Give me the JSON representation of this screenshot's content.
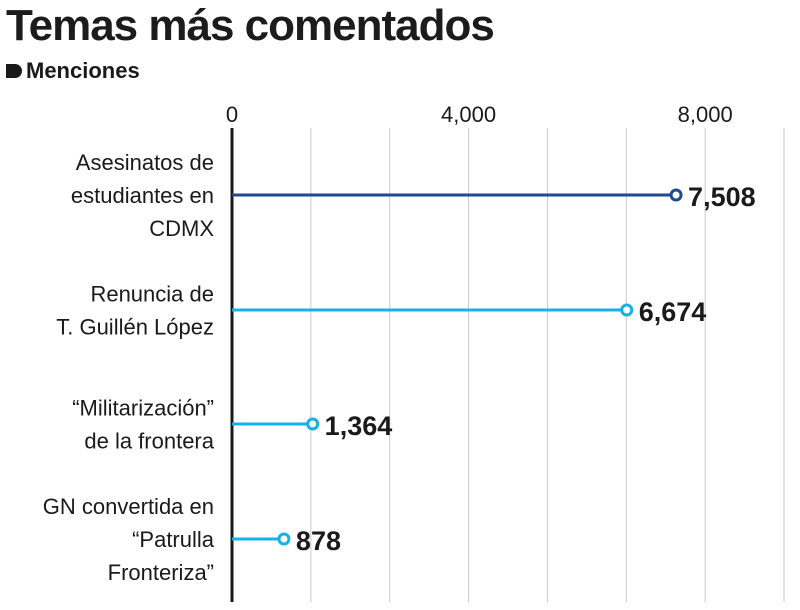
{
  "header": {
    "title": "Temas más comentados",
    "legend_label": "Menciones"
  },
  "colors": {
    "dark_blue": "#1f4a8f",
    "light_blue": "#16b1e6",
    "axis": "#1a1a1a",
    "grid": "#c8c8c8"
  },
  "chart_data": {
    "type": "lollipop-bar",
    "title": "Temas más comentados",
    "legend": [
      "Menciones"
    ],
    "x_ticks": [
      {
        "value": 0,
        "label": "0"
      },
      {
        "value": 4000,
        "label": "4,000"
      },
      {
        "value": 8000,
        "label": "8,000"
      }
    ],
    "xlim": [
      0,
      9333
    ],
    "grid_step": 1333.33,
    "categories": [
      {
        "lines": [
          "Asesinatos de",
          "estudiantes en",
          "CDMX"
        ],
        "value": 7508,
        "label": "7,508",
        "color": "dark_blue"
      },
      {
        "lines": [
          "Renuncia de",
          "T. Guillén López"
        ],
        "value": 6674,
        "label": "6,674",
        "color": "light_blue"
      },
      {
        "lines": [
          "“Militarización”",
          "de la frontera"
        ],
        "value": 1364,
        "label": "1,364",
        "color": "light_blue"
      },
      {
        "lines": [
          "GN convertida en",
          "“Patrulla",
          "Fronteriza”"
        ],
        "value": 878,
        "label": "878",
        "color": "light_blue"
      }
    ]
  }
}
